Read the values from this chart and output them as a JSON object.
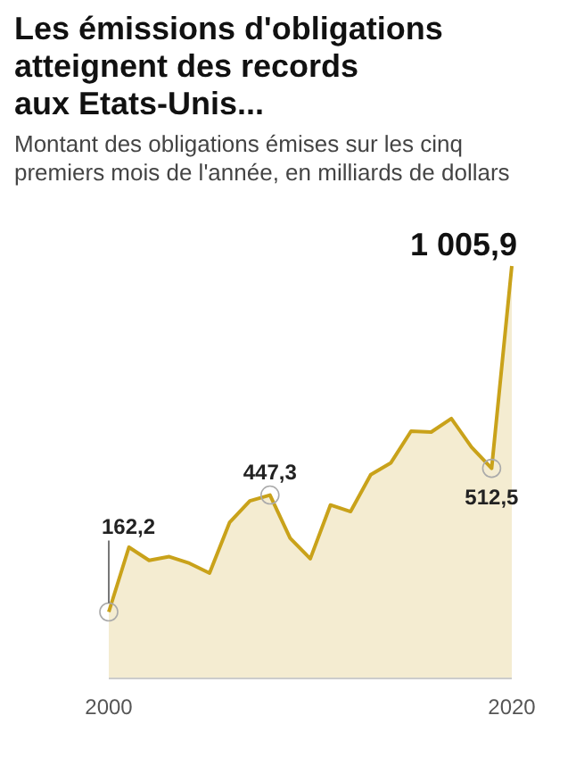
{
  "chart_data": {
    "type": "area",
    "title": "Les émissions d'obligations\natteignent des records\naux Etats-Unis...",
    "subtitle": "Montant des obligations émises sur les cinq premiers mois de l'année, en milliards de dollars",
    "x": [
      2000,
      2001,
      2002,
      2003,
      2004,
      2005,
      2006,
      2007,
      2008,
      2009,
      2010,
      2011,
      2012,
      2013,
      2014,
      2015,
      2016,
      2017,
      2018,
      2019,
      2020
    ],
    "series": [
      {
        "color": "#c9a21a",
        "values": [
          162.2,
          320,
          288,
          297,
          281,
          257,
          381,
          433,
          447.3,
          342,
          292,
          423,
          407,
          497,
          526,
          603,
          601,
          634,
          564,
          512.5,
          1005.9
        ],
        "value_labels": [
          "162,2",
          null,
          null,
          null,
          null,
          null,
          null,
          null,
          "447,3",
          null,
          null,
          null,
          null,
          null,
          null,
          null,
          null,
          null,
          null,
          "512,5",
          "1 005,9"
        ]
      }
    ],
    "xlim": [
      2000,
      2020
    ],
    "xticks": [
      2000,
      2020
    ],
    "tick_labels": "x",
    "marker": "none"
  }
}
